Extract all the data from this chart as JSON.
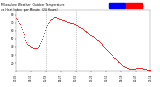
{
  "bg_color": "#ffffff",
  "line_color": "#ff0000",
  "legend_color_temp": "#0000ff",
  "legend_color_hi": "#ff0000",
  "vline_color": "#999999",
  "y_values": [
    76,
    74,
    72,
    70,
    68,
    65,
    62,
    59,
    56,
    52,
    49,
    46,
    44,
    43,
    42,
    41,
    40,
    40,
    39,
    39,
    39,
    39,
    39,
    40,
    41,
    43,
    45,
    47,
    50,
    53,
    57,
    61,
    64,
    67,
    70,
    71,
    73,
    74,
    75,
    76,
    77,
    77,
    77,
    77,
    76,
    76,
    75,
    74,
    74,
    73,
    73,
    73,
    72,
    72,
    71,
    71,
    71,
    70,
    70,
    70,
    69,
    69,
    68,
    68,
    67,
    67,
    66,
    65,
    64,
    63,
    63,
    62,
    61,
    60,
    60,
    59,
    58,
    57,
    56,
    55,
    55,
    54,
    53,
    52,
    51,
    50,
    49,
    48,
    47,
    46,
    45,
    44,
    43,
    41,
    40,
    39,
    38,
    36,
    35,
    34,
    32,
    31,
    30,
    28,
    27,
    26,
    25,
    24,
    23,
    22,
    21,
    20,
    19,
    18,
    17,
    16,
    15,
    15,
    14,
    14,
    13,
    13,
    13,
    13,
    13,
    13,
    13,
    13,
    14,
    14,
    14,
    14,
    14,
    14,
    14,
    13,
    13,
    13,
    13,
    12,
    12,
    12,
    12,
    12
  ],
  "ylim": [
    10,
    85
  ],
  "xlim_min": 0,
  "xlim_max": 143,
  "ytick_vals": [
    20,
    30,
    40,
    50,
    60,
    70,
    80
  ],
  "xtick_positions": [
    0,
    16,
    32,
    48,
    64,
    80,
    96,
    112,
    128,
    143
  ],
  "xtick_labels": [
    "01:03",
    "03:31",
    "05:59",
    "08:27",
    "10:55",
    "13:23",
    "15:51",
    "18:19",
    "20:47",
    "23:14"
  ],
  "vline_x": [
    32,
    64
  ],
  "title_left": "Milwaukee Weather Outdoor Temperature",
  "title_right": "vs Heat Index",
  "title_line3": "per Minute",
  "title_line4": "(24 Hours)"
}
